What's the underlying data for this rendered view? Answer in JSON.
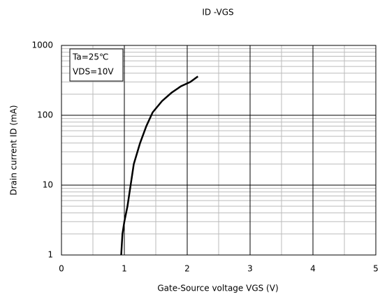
{
  "chart_data": {
    "type": "line",
    "title": "ID -VGS",
    "xlabel": "Gate-Source voltage VGS (V)",
    "ylabel": "Drain current ID (mA)",
    "annotations": [
      "Ta=25℃",
      "VDS=10V"
    ],
    "x": [
      0.95,
      0.97,
      1.0,
      1.05,
      1.1,
      1.15,
      1.25,
      1.35,
      1.45,
      1.6,
      1.75,
      1.9,
      2.05,
      2.17
    ],
    "values": [
      1,
      2,
      3,
      5,
      10,
      20,
      40,
      70,
      110,
      160,
      210,
      260,
      300,
      360
    ],
    "color": "#000000",
    "xlim": [
      0,
      5
    ],
    "xticks": [
      0,
      1,
      2,
      3,
      4,
      5
    ],
    "ylim": [
      1,
      1000
    ],
    "yticks": [
      1,
      10,
      100,
      1000
    ],
    "log_y": true,
    "grid": true
  }
}
